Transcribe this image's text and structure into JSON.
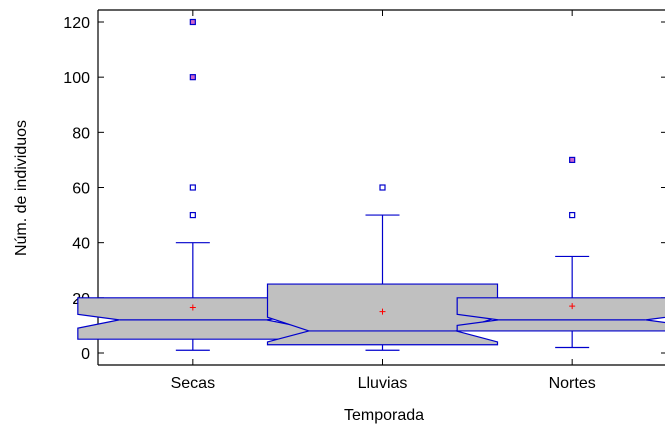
{
  "chart_data": {
    "type": "boxplot",
    "notched": true,
    "xlabel": "Temporada",
    "ylabel": "Núm. de individuos",
    "ylim": [
      -5,
      125
    ],
    "yticks": [
      0,
      20,
      40,
      60,
      80,
      100,
      120
    ],
    "grid": false,
    "categories": [
      "Secas",
      "Lluvias",
      "Nortes"
    ],
    "boxes": [
      {
        "category": "Secas",
        "whisker_low": 1,
        "q1": 5,
        "median": 12,
        "q3": 20,
        "whisker_high": 40,
        "notch_low": 9,
        "notch_high": 14,
        "mean": 16.5,
        "outliers": [
          50,
          60,
          100,
          120
        ]
      },
      {
        "category": "Lluvias",
        "whisker_low": 1,
        "q1": 3,
        "median": 8,
        "q3": 25,
        "whisker_high": 50,
        "notch_low": 4,
        "notch_high": 13,
        "mean": 15,
        "outliers": [
          60
        ]
      },
      {
        "category": "Nortes",
        "whisker_low": 2,
        "q1": 8,
        "median": 12,
        "q3": 20,
        "whisker_high": 35,
        "notch_low": 10,
        "notch_high": 14,
        "mean": 17,
        "outliers": [
          50,
          70
        ]
      }
    ],
    "colors": {
      "box_fill": "#c0c0c0",
      "box_stroke": "#0000cc",
      "mean_marker": "#ff0000",
      "outlier_stroke": "#0000cc",
      "outlier_far_fill": "#cc66cc",
      "axis": "#000000"
    }
  }
}
